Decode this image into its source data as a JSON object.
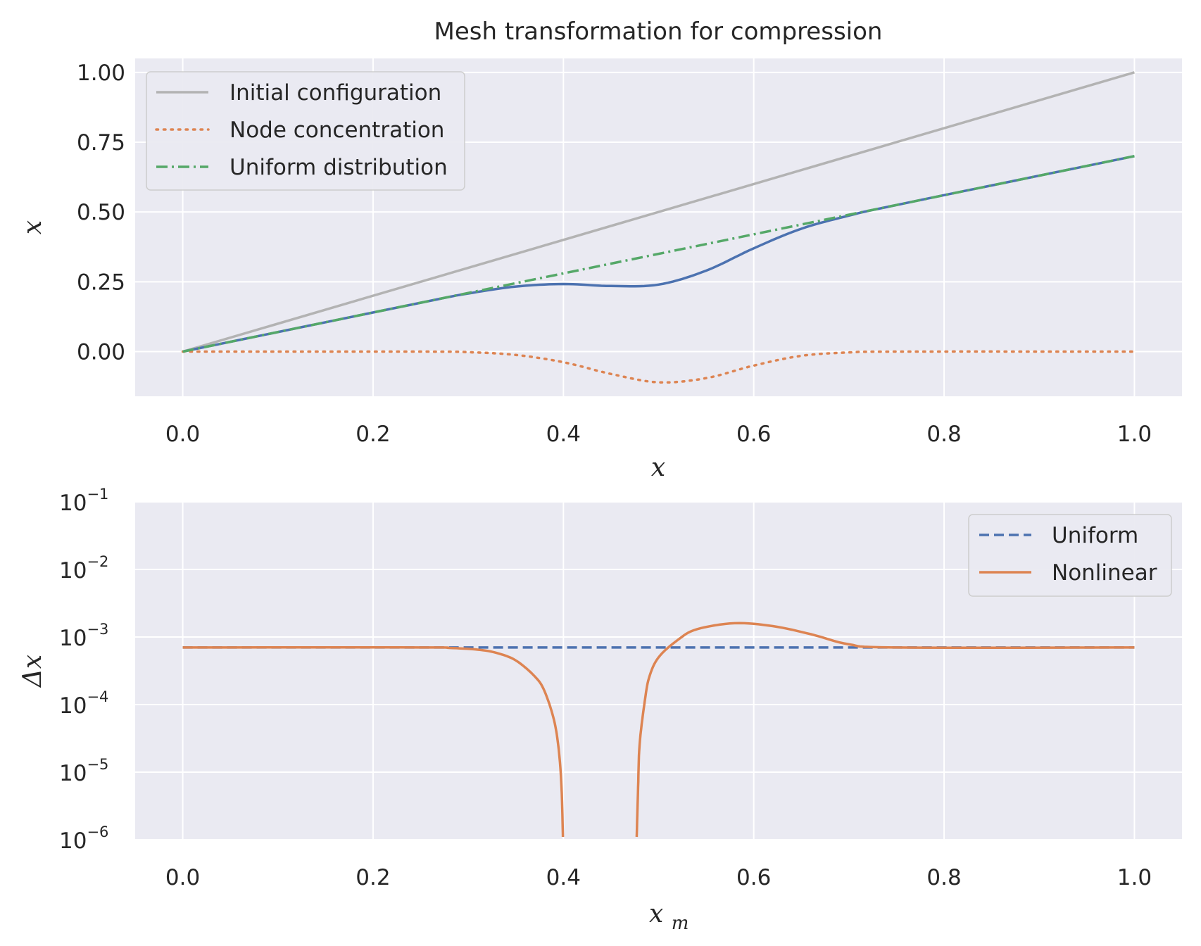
{
  "figure_title": "Mesh transformation for compression",
  "colors": {
    "background": "#eaeaf2",
    "grid": "#ffffff",
    "blue": "#4c72b0",
    "orange": "#dd8452",
    "green": "#55a868",
    "gray": "#b3b3b3"
  },
  "chart_data": [
    {
      "type": "line",
      "title": "Mesh transformation for compression",
      "xlabel": "𝑥",
      "ylabel": "x",
      "xlim": [
        -0.05,
        1.05
      ],
      "ylim": [
        -0.16,
        1.05
      ],
      "xticks": [
        "0.0",
        "0.2",
        "0.4",
        "0.6",
        "0.8",
        "1.0"
      ],
      "yticks": [
        "0.00",
        "0.25",
        "0.50",
        "0.75",
        "1.00"
      ],
      "grid": true,
      "legend": "upper-left",
      "series": [
        {
          "name": "Initial configuration",
          "style": "solid",
          "color": "#b3b3b3",
          "x": [
            0,
            1
          ],
          "y": [
            0,
            1
          ]
        },
        {
          "name": "Node concentration",
          "style": "dotted",
          "color": "#dd8452",
          "x": [
            0,
            0.25,
            0.3,
            0.35,
            0.4,
            0.45,
            0.5,
            0.55,
            0.6,
            0.65,
            0.7,
            0.75,
            1.0
          ],
          "y": [
            0,
            0,
            -0.002,
            -0.012,
            -0.038,
            -0.08,
            -0.11,
            -0.095,
            -0.05,
            -0.015,
            -0.003,
            0,
            0
          ]
        },
        {
          "name": "Uniform distribution",
          "style": "dashdot",
          "color": "#55a868",
          "x": [
            0,
            1
          ],
          "y": [
            0,
            0.7
          ]
        },
        {
          "name": "",
          "style": "solid",
          "color": "#4c72b0",
          "x": [
            0,
            0.25,
            0.3,
            0.35,
            0.4,
            0.45,
            0.5,
            0.55,
            0.6,
            0.65,
            0.7,
            0.75,
            1.0
          ],
          "y": [
            0,
            0.175,
            0.208,
            0.233,
            0.242,
            0.235,
            0.24,
            0.29,
            0.37,
            0.44,
            0.487,
            0.525,
            0.7
          ]
        }
      ]
    },
    {
      "type": "line",
      "xlabel": "𝑥m",
      "ylabel": "Δx",
      "xlim": [
        -0.05,
        1.05
      ],
      "yscale": "log",
      "ylim": [
        1e-06,
        0.1
      ],
      "xticks": [
        "0.0",
        "0.2",
        "0.4",
        "0.6",
        "0.8",
        "1.0"
      ],
      "ytick_base": "10",
      "ytick_exponents": [
        "−1",
        "−2",
        "−3",
        "−4",
        "−5",
        "−6"
      ],
      "grid": true,
      "legend": "upper-right",
      "series": [
        {
          "name": "Uniform",
          "style": "dashed",
          "color": "#4c72b0",
          "x": [
            0,
            1
          ],
          "y": [
            0.0007,
            0.0007
          ]
        },
        {
          "name": "Nonlinear",
          "style": "solid",
          "color": "#dd8452",
          "x": [
            0,
            0.25,
            0.28,
            0.31,
            0.33,
            0.35,
            0.37,
            0.38,
            0.39,
            0.395,
            0.398,
            0.3995,
            null,
            0.477,
            0.4785,
            0.48,
            0.485,
            0.49,
            0.5,
            0.52,
            0.54,
            0.58,
            0.62,
            0.66,
            0.7,
            0.75,
            1.0
          ],
          "y": [
            0.0007,
            0.0007,
            0.00069,
            0.00065,
            0.00058,
            0.00045,
            0.00026,
            0.00016,
            6e-05,
            2.2e-05,
            6e-06,
            1.1e-06,
            null,
            1.1e-06,
            6e-06,
            2.5e-05,
            0.0001,
            0.00025,
            0.0005,
            0.0009,
            0.0013,
            0.0016,
            0.00145,
            0.0011,
            0.00078,
            0.0007,
            0.0007
          ]
        }
      ]
    }
  ]
}
